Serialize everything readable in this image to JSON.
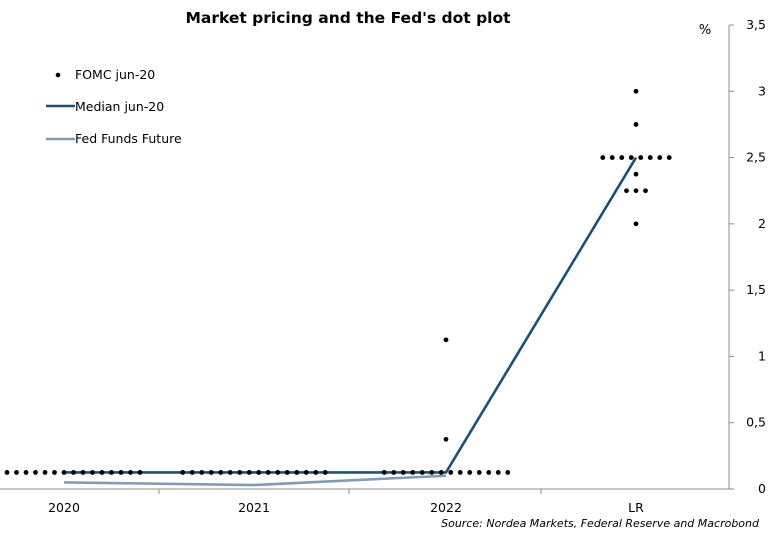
{
  "chart_data": {
    "type": "line",
    "title": "Market pricing and the Fed's dot plot",
    "unit": "%",
    "source": "Source: Nordea Markets, Federal Reserve and Macrobond",
    "categories": [
      "2020",
      "2021",
      "2022",
      "LR"
    ],
    "ylim": [
      0,
      3.5
    ],
    "yticks": [
      "0",
      "0,5",
      "1",
      "1,5",
      "2",
      "2,5",
      "3",
      "3,5"
    ],
    "ytick_values": [
      0,
      0.5,
      1,
      1.5,
      2,
      2.5,
      3,
      3.5
    ],
    "legend_position": "top-left",
    "colors": {
      "dots": "#000000",
      "median": "#1a5276",
      "fff": "#7f9bb8",
      "axis": "#8c8c8c"
    },
    "series": [
      {
        "name": "FOMC jun-20",
        "kind": "dots",
        "values": [
          {
            "x": "2020",
            "y": 0.125,
            "count": 17
          },
          {
            "x": "2021",
            "y": 0.125,
            "count": 16
          },
          {
            "x": "2022",
            "y": 0.125,
            "count": 14
          },
          {
            "x": "2022",
            "y": 0.375,
            "count": 1
          },
          {
            "x": "2022",
            "y": 1.125,
            "count": 1
          },
          {
            "x": "LR",
            "y": 2.0,
            "count": 1
          },
          {
            "x": "LR",
            "y": 2.25,
            "count": 3
          },
          {
            "x": "LR",
            "y": 2.375,
            "count": 1
          },
          {
            "x": "LR",
            "y": 2.5,
            "count": 8
          },
          {
            "x": "LR",
            "y": 2.75,
            "count": 1
          },
          {
            "x": "LR",
            "y": 3.0,
            "count": 1
          }
        ]
      },
      {
        "name": "Median jun-20",
        "kind": "line",
        "x": [
          "2020",
          "2021",
          "2022",
          "LR"
        ],
        "values": [
          0.125,
          0.125,
          0.125,
          2.5
        ]
      },
      {
        "name": "Fed Funds Future",
        "kind": "line",
        "x": [
          "2020",
          "2021",
          "2022"
        ],
        "values": [
          0.05,
          0.03,
          0.1
        ]
      }
    ]
  }
}
